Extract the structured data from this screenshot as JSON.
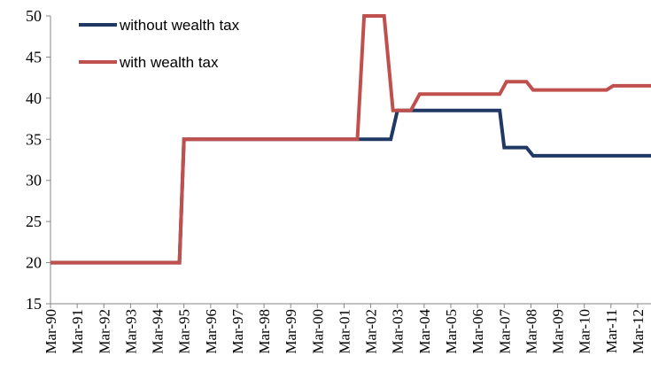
{
  "chart_data": {
    "type": "line",
    "title": "",
    "xlabel": "",
    "ylabel": "",
    "ylim": [
      15,
      50
    ],
    "yticks": [
      15,
      20,
      25,
      30,
      35,
      40,
      45,
      50
    ],
    "grid": false,
    "legend_position": "top-left",
    "categories": [
      "Mar-90",
      "Mar-91",
      "Mar-92",
      "Mar-93",
      "Mar-94",
      "Mar-95",
      "Mar-96",
      "Mar-97",
      "Mar-98",
      "Mar-99",
      "Mar-00",
      "Mar-01",
      "Mar-02",
      "Mar-03",
      "Mar-04",
      "Mar-05",
      "Mar-06",
      "Mar-07",
      "Mar-08",
      "Mar-09",
      "Mar-10",
      "Mar-11",
      "Mar-12"
    ],
    "x_start": "1990-03",
    "x_end": "2012-09",
    "series": [
      {
        "name": "without wealth tax",
        "color": "#1f3864",
        "points": [
          [
            "1990-03",
            20
          ],
          [
            "1995-01",
            20
          ],
          [
            "1995-03",
            35
          ],
          [
            "2002-06",
            35
          ],
          [
            "2002-12",
            35
          ],
          [
            "2003-03",
            38.5
          ],
          [
            "2007-01",
            38.5
          ],
          [
            "2007-03",
            34
          ],
          [
            "2008-01",
            34
          ],
          [
            "2008-04",
            33
          ],
          [
            "2012-09",
            33
          ]
        ]
      },
      {
        "name": "with wealth tax",
        "color": "#c0504d",
        "points": [
          [
            "1990-03",
            20
          ],
          [
            "1995-01",
            20
          ],
          [
            "1995-03",
            35
          ],
          [
            "2001-09",
            35
          ],
          [
            "2001-12",
            50
          ],
          [
            "2002-09",
            50
          ],
          [
            "2003-01",
            38.5
          ],
          [
            "2003-09",
            38.5
          ],
          [
            "2004-01",
            40.5
          ],
          [
            "2007-01",
            40.5
          ],
          [
            "2007-04",
            42
          ],
          [
            "2008-01",
            42
          ],
          [
            "2008-04",
            41
          ],
          [
            "2011-01",
            41
          ],
          [
            "2011-04",
            41.5
          ],
          [
            "2012-09",
            41.5
          ]
        ]
      }
    ]
  }
}
